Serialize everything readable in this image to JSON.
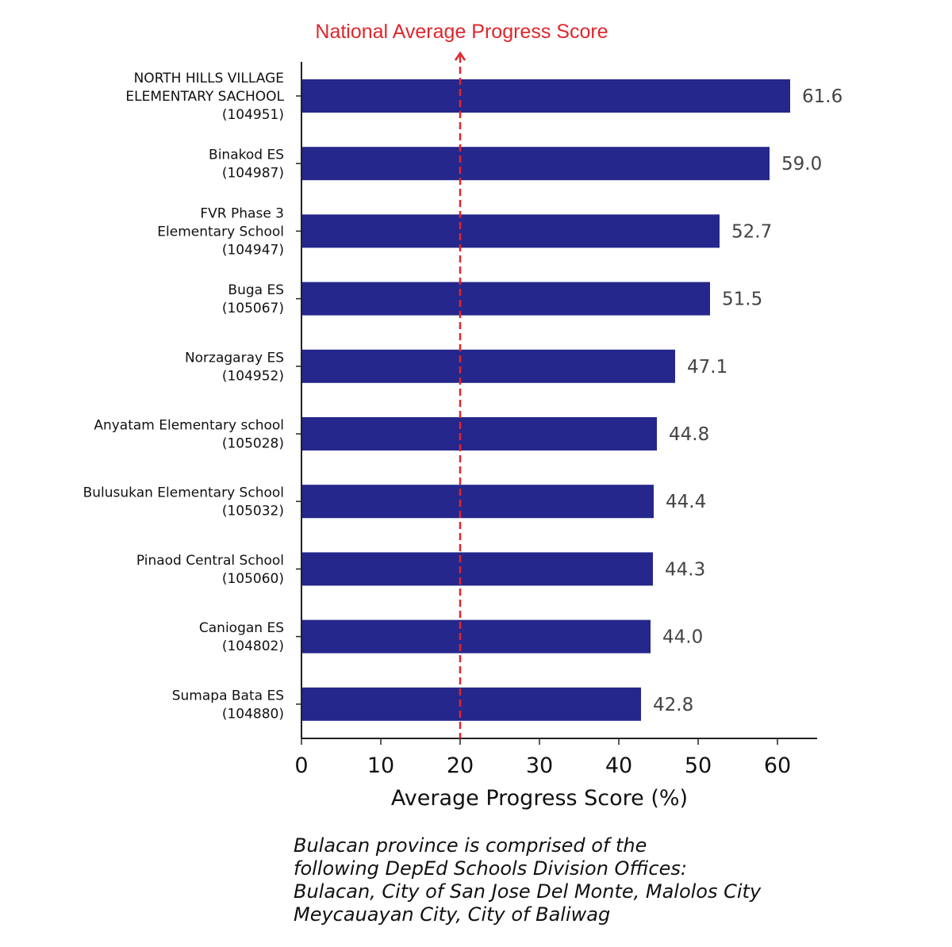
{
  "chart_data": {
    "type": "bar",
    "orientation": "horizontal",
    "categories": [
      [
        "NORTH HILLS VILLAGE",
        "ELEMENTARY SACHOOL",
        "(104951)"
      ],
      [
        "Binakod ES",
        "(104987)"
      ],
      [
        "FVR Phase 3",
        "Elementary School",
        "(104947)"
      ],
      [
        "Buga ES",
        "(105067)"
      ],
      [
        "Norzagaray ES",
        "(104952)"
      ],
      [
        "Anyatam Elementary school",
        "(105028)"
      ],
      [
        "Bulusukan Elementary School",
        "(105032)"
      ],
      [
        "Pinaod Central School",
        "(105060)"
      ],
      [
        "Caniogan ES",
        "(104802)"
      ],
      [
        "Sumapa Bata ES",
        "(104880)"
      ]
    ],
    "values": [
      61.6,
      59.0,
      52.7,
      51.5,
      47.1,
      44.8,
      44.4,
      44.3,
      44.0,
      42.8
    ],
    "data_labels": [
      "61.6",
      "59.0",
      "52.7",
      "51.5",
      "47.1",
      "44.8",
      "44.4",
      "44.3",
      "44.0",
      "42.8"
    ],
    "xlabel": "Average Progress Score (%)",
    "ylabel": "",
    "xlim": [
      0,
      65
    ],
    "xticks": [
      0,
      10,
      20,
      30,
      40,
      50,
      60
    ],
    "grid": false,
    "bar_color": "#25278c",
    "reference_line": {
      "value": 20,
      "label": "National Average Progress Score",
      "color": "#e0262b",
      "style": "dashed"
    }
  },
  "note": [
    "Bulacan province is comprised of the",
    "following DepEd Schools Division Offices:",
    "Bulacan, City of San Jose Del Monte, Malolos City",
    "Meycauayan City, City of Baliwag"
  ]
}
